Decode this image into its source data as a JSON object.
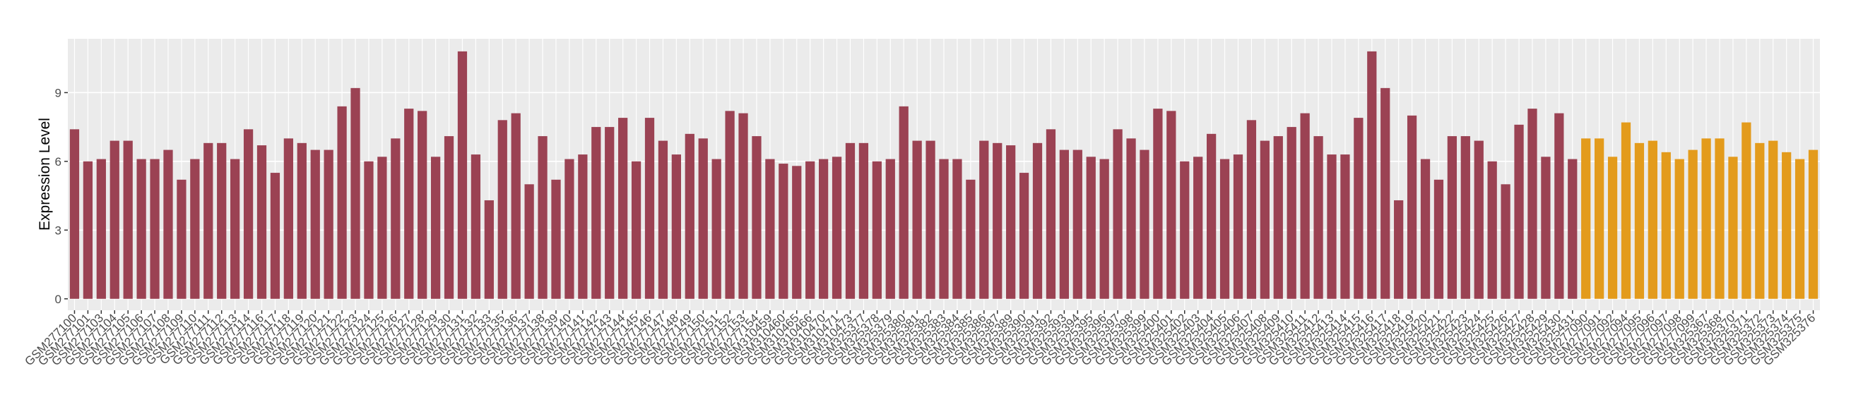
{
  "chart_data": {
    "type": "bar",
    "y_label": "Expression Level",
    "categories": [
      "GSM277100",
      "GSM277101",
      "GSM277103",
      "GSM277104",
      "GSM277105",
      "GSM277106",
      "GSM277107",
      "GSM277108",
      "GSM277109",
      "GSM277110",
      "GSM277111",
      "GSM277112",
      "GSM277113",
      "GSM277114",
      "GSM277116",
      "GSM277117",
      "GSM277118",
      "GSM277119",
      "GSM277120",
      "GSM277121",
      "GSM277122",
      "GSM277123",
      "GSM277124",
      "GSM277125",
      "GSM277126",
      "GSM277127",
      "GSM277128",
      "GSM277129",
      "GSM277130",
      "GSM277131",
      "GSM277132",
      "GSM277133",
      "GSM277135",
      "GSM277136",
      "GSM277137",
      "GSM277138",
      "GSM277139",
      "GSM277140",
      "GSM277141",
      "GSM277142",
      "GSM277143",
      "GSM277144",
      "GSM277145",
      "GSM277146",
      "GSM277147",
      "GSM277148",
      "GSM277149",
      "GSM277150",
      "GSM277151",
      "GSM277152",
      "GSM277153",
      "GSM277154",
      "GSM310459",
      "GSM310460",
      "GSM310465",
      "GSM310466",
      "GSM310470",
      "GSM310471",
      "GSM310473",
      "GSM325377",
      "GSM325378",
      "GSM325379",
      "GSM325380",
      "GSM325381",
      "GSM325382",
      "GSM325383",
      "GSM325384",
      "GSM325385",
      "GSM325386",
      "GSM325387",
      "GSM325389",
      "GSM325390",
      "GSM325391",
      "GSM325392",
      "GSM325393",
      "GSM325394",
      "GSM325395",
      "GSM325396",
      "GSM325397",
      "GSM325398",
      "GSM325399",
      "GSM325400",
      "GSM325401",
      "GSM325402",
      "GSM325403",
      "GSM325404",
      "GSM325405",
      "GSM325406",
      "GSM325407",
      "GSM325408",
      "GSM325409",
      "GSM325410",
      "GSM325411",
      "GSM325412",
      "GSM325413",
      "GSM325414",
      "GSM325415",
      "GSM325416",
      "GSM325417",
      "GSM325418",
      "GSM325419",
      "GSM325420",
      "GSM325421",
      "GSM325422",
      "GSM325423",
      "GSM325424",
      "GSM325425",
      "GSM325426",
      "GSM325427",
      "GSM325428",
      "GSM325429",
      "GSM325430",
      "GSM325431",
      "GSM277090",
      "GSM277091",
      "GSM277092",
      "GSM277094",
      "GSM277095",
      "GSM277096",
      "GSM277097",
      "GSM277098",
      "GSM277099",
      "GSM325367",
      "GSM325368",
      "GSM325370",
      "GSM325371",
      "GSM325372",
      "GSM325373",
      "GSM325374",
      "GSM325375",
      "GSM325376"
    ],
    "values": [
      7.4,
      6.0,
      6.1,
      6.9,
      6.9,
      6.1,
      6.1,
      6.5,
      5.2,
      6.1,
      6.8,
      6.8,
      6.1,
      7.4,
      6.7,
      5.5,
      7.0,
      6.8,
      6.5,
      6.5,
      8.4,
      9.2,
      6.0,
      6.2,
      7.0,
      8.3,
      8.2,
      6.2,
      7.1,
      10.8,
      6.3,
      4.3,
      7.8,
      8.1,
      5.0,
      7.1,
      5.2,
      6.1,
      6.3,
      7.5,
      7.5,
      7.9,
      6.0,
      7.9,
      6.9,
      6.3,
      7.2,
      7.0,
      6.1,
      8.2,
      8.1,
      7.1,
      6.1,
      5.9,
      5.8,
      6.0,
      6.1,
      6.2,
      6.8,
      6.8,
      6.0,
      6.1,
      8.4,
      6.9,
      6.9,
      6.1,
      6.1,
      5.2,
      6.9,
      6.8,
      6.7,
      5.5,
      6.8,
      7.4,
      6.5,
      6.5,
      6.2,
      6.1,
      7.4,
      7.0,
      6.5,
      8.3,
      8.2,
      6.0,
      6.2,
      7.2,
      6.1,
      6.3,
      7.8,
      6.9,
      7.1,
      7.5,
      8.1,
      7.1,
      6.3,
      6.3,
      7.9,
      10.8,
      9.2,
      4.3,
      8.0,
      6.1,
      5.2,
      7.1,
      7.1,
      6.9,
      6.0,
      5.0,
      7.6,
      8.3,
      6.2,
      8.1,
      6.1,
      7.0,
      7.0,
      6.2,
      7.7,
      6.8,
      6.9,
      6.4,
      6.1,
      6.5,
      7.0,
      7.0,
      6.2,
      7.7,
      6.8,
      6.9,
      6.4,
      6.1,
      6.5
    ],
    "colors": [
      "#9b4253",
      "#9b4253",
      "#9b4253",
      "#9b4253",
      "#9b4253",
      "#9b4253",
      "#9b4253",
      "#9b4253",
      "#9b4253",
      "#9b4253",
      "#9b4253",
      "#9b4253",
      "#9b4253",
      "#9b4253",
      "#9b4253",
      "#9b4253",
      "#9b4253",
      "#9b4253",
      "#9b4253",
      "#9b4253",
      "#9b4253",
      "#9b4253",
      "#9b4253",
      "#9b4253",
      "#9b4253",
      "#9b4253",
      "#9b4253",
      "#9b4253",
      "#9b4253",
      "#9b4253",
      "#9b4253",
      "#9b4253",
      "#9b4253",
      "#9b4253",
      "#9b4253",
      "#9b4253",
      "#9b4253",
      "#9b4253",
      "#9b4253",
      "#9b4253",
      "#9b4253",
      "#9b4253",
      "#9b4253",
      "#9b4253",
      "#9b4253",
      "#9b4253",
      "#9b4253",
      "#9b4253",
      "#9b4253",
      "#9b4253",
      "#9b4253",
      "#9b4253",
      "#9b4253",
      "#9b4253",
      "#9b4253",
      "#9b4253",
      "#9b4253",
      "#9b4253",
      "#9b4253",
      "#9b4253",
      "#9b4253",
      "#9b4253",
      "#9b4253",
      "#9b4253",
      "#9b4253",
      "#9b4253",
      "#9b4253",
      "#9b4253",
      "#9b4253",
      "#9b4253",
      "#9b4253",
      "#9b4253",
      "#9b4253",
      "#9b4253",
      "#9b4253",
      "#9b4253",
      "#9b4253",
      "#9b4253",
      "#9b4253",
      "#9b4253",
      "#9b4253",
      "#9b4253",
      "#9b4253",
      "#9b4253",
      "#9b4253",
      "#9b4253",
      "#9b4253",
      "#9b4253",
      "#9b4253",
      "#9b4253",
      "#9b4253",
      "#9b4253",
      "#9b4253",
      "#9b4253",
      "#9b4253",
      "#9b4253",
      "#9b4253",
      "#9b4253",
      "#9b4253",
      "#9b4253",
      "#9b4253",
      "#9b4253",
      "#9b4253",
      "#9b4253",
      "#9b4253",
      "#9b4253",
      "#9b4253",
      "#9b4253",
      "#9b4253",
      "#9b4253",
      "#9b4253",
      "#9b4253",
      "#9b4253",
      "#e39b1c",
      "#e39b1c",
      "#e39b1c",
      "#e39b1c",
      "#e39b1c",
      "#e39b1c",
      "#e39b1c",
      "#e39b1c",
      "#e39b1c",
      "#e39b1c",
      "#e39b1c",
      "#e39b1c",
      "#e39b1c",
      "#e39b1c",
      "#e39b1c",
      "#e39b1c",
      "#e39b1c",
      "#e39b1c"
    ],
    "ylim": [
      -0.5,
      11.35
    ],
    "yticks": [
      0,
      3,
      6,
      9
    ],
    "grid": true
  }
}
